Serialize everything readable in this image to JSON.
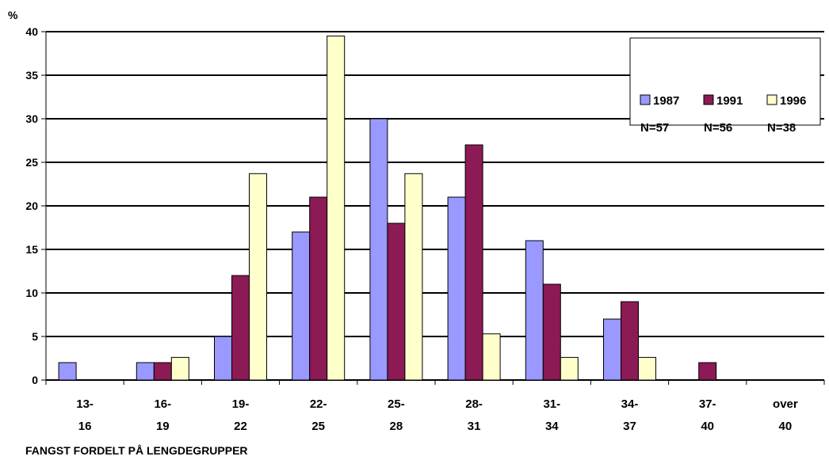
{
  "chart_data": {
    "type": "bar",
    "title": "FANGST FORDELT PÅ LENGDEGRUPPER",
    "ylabel": "%",
    "xlabel": "",
    "ylim": [
      0,
      40
    ],
    "yticks": [
      0,
      5,
      10,
      15,
      20,
      25,
      30,
      35,
      40
    ],
    "grid": true,
    "legend_position": "top-right",
    "categories": [
      [
        "13-",
        "16"
      ],
      [
        "16-",
        "19"
      ],
      [
        "19-",
        "22"
      ],
      [
        "22-",
        "25"
      ],
      [
        "25-",
        "28"
      ],
      [
        "28-",
        "31"
      ],
      [
        "31-",
        "34"
      ],
      [
        "34-",
        "37"
      ],
      [
        "37-",
        "40"
      ],
      [
        "over",
        "40"
      ]
    ],
    "series": [
      {
        "name": "1987",
        "n_label": "N=57",
        "color": "#9999ff",
        "values": [
          2,
          2,
          5,
          17,
          30,
          21,
          16,
          7,
          0,
          0
        ]
      },
      {
        "name": "1991",
        "n_label": "N=56",
        "color": "#8b1a55",
        "values": [
          0,
          2,
          12,
          21,
          18,
          27,
          11,
          9,
          2,
          0
        ]
      },
      {
        "name": "1996",
        "n_label": "N=38",
        "color": "#ffffcc",
        "values": [
          0,
          2.6,
          23.7,
          39.5,
          23.7,
          5.3,
          2.6,
          2.6,
          0,
          0
        ]
      }
    ]
  }
}
